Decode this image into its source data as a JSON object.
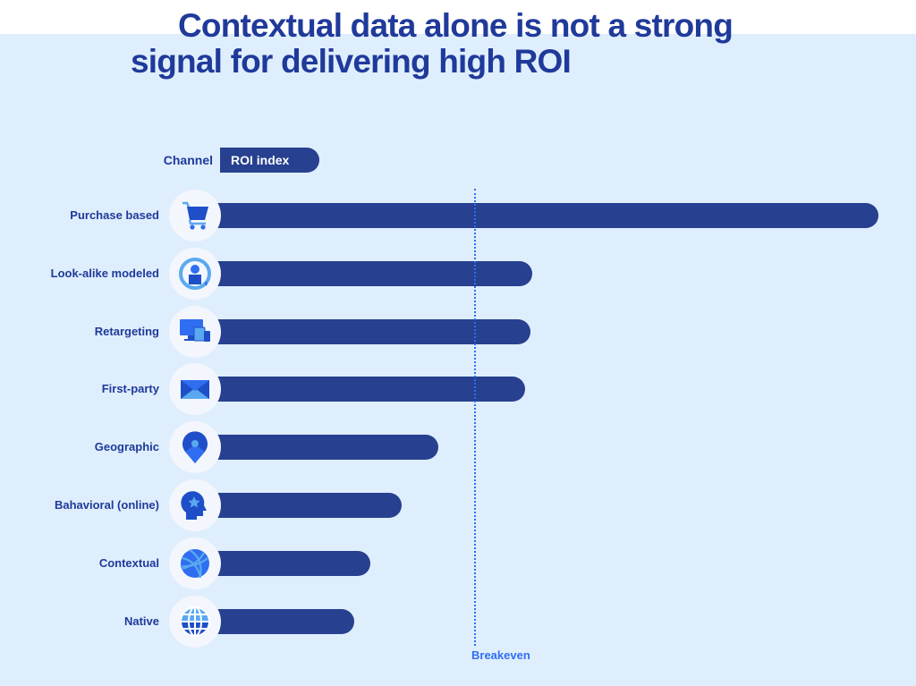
{
  "chart_data": {
    "type": "bar",
    "orientation": "horizontal",
    "title": "Contextual data alone is not a strong signal for delivering high ROI",
    "title_lines": [
      "Contextual data alone is not a strong",
      "signal for delivering high ROI"
    ],
    "xlabel": "ROI index",
    "ylabel": "Channel",
    "column_headers": {
      "channel": "Channel",
      "value": "ROI index"
    },
    "categories": [
      "Purchase based",
      "Look-alike modeled",
      "Retargeting",
      "First-party",
      "Geographic",
      "Bahavioral (online)",
      "Contextual",
      "Native"
    ],
    "icons": [
      "shopping-cart-icon",
      "user-refresh-icon",
      "devices-icon",
      "envelope-icon",
      "map-pin-icon",
      "head-star-icon",
      "ball-icon",
      "globe-icon"
    ],
    "values": [
      2.54,
      1.22,
      1.21,
      1.19,
      0.86,
      0.72,
      0.6,
      0.54
    ],
    "value_units": "relative to breakeven (breakeven = 1.0)",
    "xlim": [
      0,
      2.6
    ],
    "reference_line": {
      "label": "Breakeven",
      "value": 1.0,
      "style": "dotted"
    },
    "grid": false,
    "legend": "none",
    "colors": {
      "bar": "#27408f",
      "title": "#1f3a9a",
      "breakeven": "#2f6ef0",
      "background": "#dfeefd"
    }
  }
}
